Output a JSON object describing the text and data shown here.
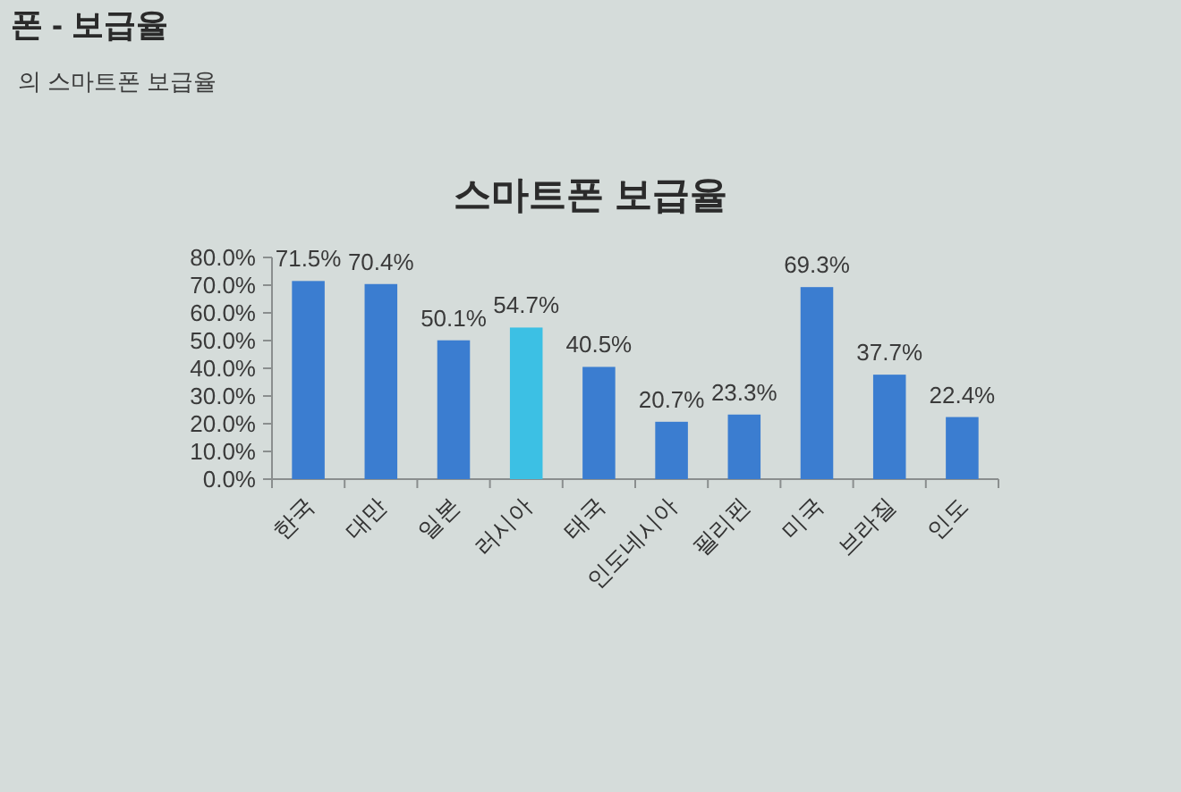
{
  "chart_data": {
    "type": "bar",
    "title": "스마트폰 보급율",
    "annotations": [
      "폰 - 보급율",
      "의 스마트폰 보급율"
    ],
    "categories": [
      "한국",
      "대만",
      "일본",
      "러시아",
      "태국",
      "인도네시아",
      "필리핀",
      "미국",
      "브라질",
      "인도"
    ],
    "values": [
      71.5,
      70.4,
      50.1,
      54.7,
      40.5,
      20.7,
      23.3,
      69.3,
      37.7,
      22.4
    ],
    "colors": [
      "#3b7dd0",
      "#3b7dd0",
      "#3b7dd0",
      "#3cc0e4",
      "#3b7dd0",
      "#3b7dd0",
      "#3b7dd0",
      "#3b7dd0",
      "#3b7dd0",
      "#3b7dd0"
    ],
    "value_labels": [
      "71.5%",
      "70.4%",
      "50.1%",
      "54.7%",
      "40.5%",
      "20.7%",
      "23.3%",
      "69.3%",
      "37.7%",
      "22.4%"
    ],
    "ylim": [
      0,
      80
    ],
    "yticks": [
      {
        "value": 0,
        "label": "0.0%"
      },
      {
        "value": 10,
        "label": "10.0%"
      },
      {
        "value": 20,
        "label": "20.0%"
      },
      {
        "value": 30,
        "label": "30.0%"
      },
      {
        "value": 40,
        "label": "40.0%"
      },
      {
        "value": 50,
        "label": "50.0%"
      },
      {
        "value": 60,
        "label": "60.0%"
      },
      {
        "value": 70,
        "label": "70.0%"
      },
      {
        "value": 80,
        "label": "80.0%"
      }
    ]
  }
}
